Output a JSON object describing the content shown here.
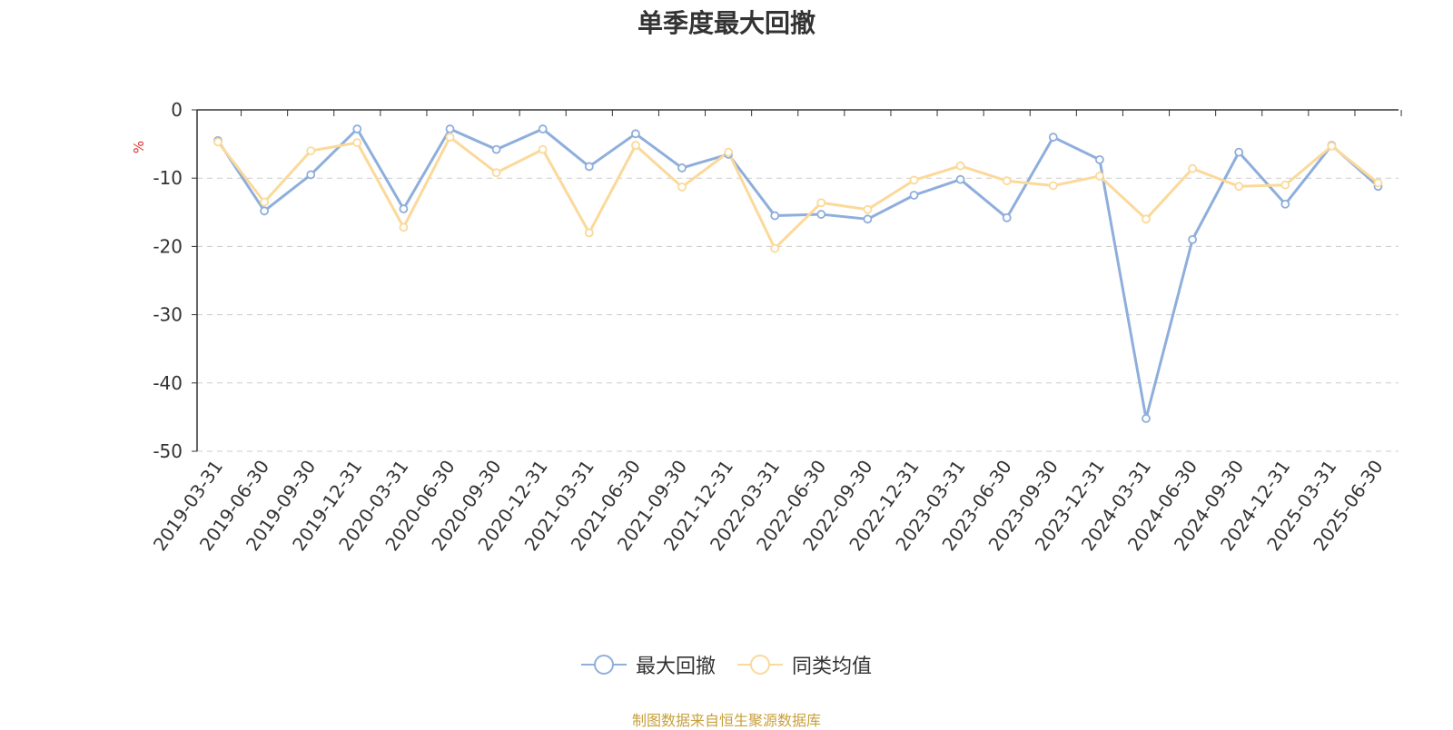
{
  "chart_data": {
    "type": "line",
    "title": "单季度最大回撤",
    "ylabel": "%",
    "ylim": [
      -50,
      0
    ],
    "yticks": [
      0,
      -10,
      -20,
      -30,
      -40,
      -50
    ],
    "grid": true,
    "legend_position": "bottom-center",
    "categories": [
      "2019-03-31",
      "2019-06-30",
      "2019-09-30",
      "2019-12-31",
      "2020-03-31",
      "2020-06-30",
      "2020-09-30",
      "2020-12-31",
      "2021-03-31",
      "2021-06-30",
      "2021-09-30",
      "2021-12-31",
      "2022-03-31",
      "2022-06-30",
      "2022-09-30",
      "2022-12-31",
      "2023-03-31",
      "2023-06-30",
      "2023-09-30",
      "2023-12-31",
      "2024-03-31",
      "2024-06-30",
      "2024-09-30",
      "2024-12-31",
      "2025-03-31",
      "2025-06-30"
    ],
    "series": [
      {
        "name": "最大回撤",
        "color": "#8eaedc",
        "values": [
          -4.5,
          -14.8,
          -9.5,
          -2.8,
          -14.5,
          -2.8,
          -5.8,
          -2.8,
          -8.3,
          -3.5,
          -8.5,
          -6.5,
          -15.5,
          -15.3,
          -16.0,
          -12.5,
          -10.2,
          -15.8,
          -4.0,
          -7.3,
          -45.2,
          -19.0,
          -6.2,
          -13.8,
          -5.2,
          -11.2
        ]
      },
      {
        "name": "同类均值",
        "color": "#fbd99a",
        "values": [
          -4.7,
          -13.5,
          -6.0,
          -4.8,
          -17.2,
          -4.0,
          -9.2,
          -5.8,
          -18.0,
          -5.2,
          -11.3,
          -6.2,
          -20.3,
          -13.6,
          -14.6,
          -10.3,
          -8.2,
          -10.4,
          -11.1,
          -9.7,
          -16.0,
          -8.6,
          -11.2,
          -11.0,
          -5.3,
          -10.7
        ]
      }
    ]
  },
  "source_note": "制图数据来自恒生聚源数据库"
}
